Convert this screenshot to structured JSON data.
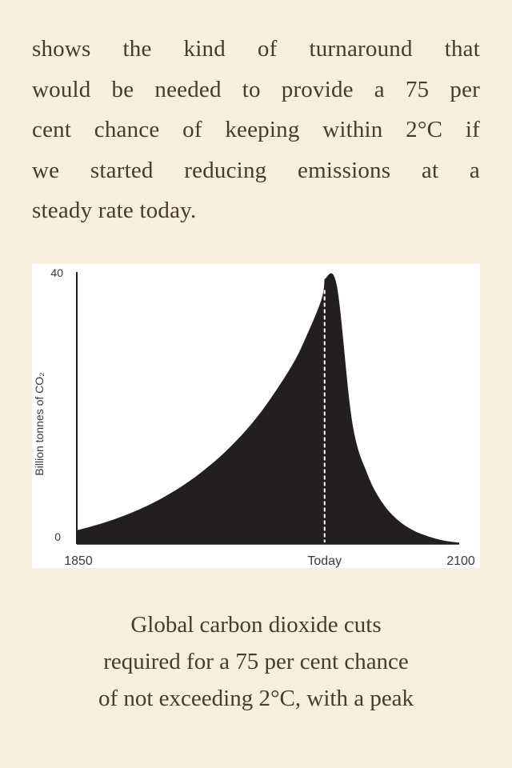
{
  "paragraph": {
    "lines": [
      "shows the kind of turnaround that",
      "would be needed to provide a 75 per",
      "cent chance of keeping within 2°C if",
      "we started reducing emissions at a",
      "steady rate today."
    ]
  },
  "caption": {
    "lines": [
      "Global carbon dioxide cuts",
      "required for a 75 per cent chance",
      "of not exceeding 2°C, with a peak"
    ]
  },
  "chart_data": {
    "type": "area",
    "title": "",
    "xlabel": "",
    "ylabel": "Billion tonnes of CO₂",
    "ylim": [
      0,
      40
    ],
    "xlim": [
      1850,
      2100
    ],
    "x_tick_labels": [
      "1850",
      "Today",
      "2100"
    ],
    "y_tick_labels": [
      "0",
      "40"
    ],
    "x": [
      1850,
      1870,
      1890,
      1910,
      1930,
      1950,
      1970,
      1990,
      2000,
      2010,
      2020,
      2030,
      2040,
      2050,
      2060,
      2070,
      2080,
      2090,
      2100
    ],
    "values": [
      2,
      3.3,
      5,
      7.3,
      10.3,
      14.2,
      19.3,
      26,
      30.5,
      36,
      38,
      18,
      10.3,
      6,
      3.5,
      2,
      1.1,
      0.5,
      0.2
    ],
    "peak": {
      "x": 2012,
      "value": 39,
      "label": "Today"
    },
    "marker_line": "dashed vertical line at Today",
    "fill_color": "#231f20",
    "grid": false,
    "legend": "none"
  }
}
